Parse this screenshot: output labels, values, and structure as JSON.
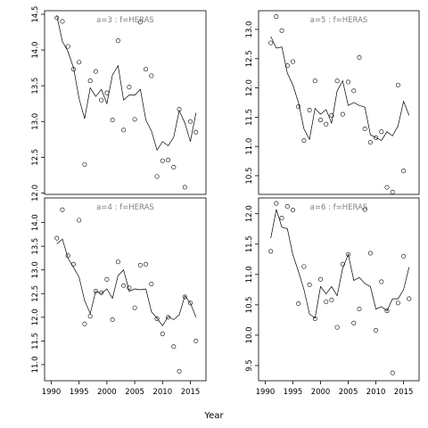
{
  "xlabel": "Year",
  "chart_data": [
    {
      "type": "scatter",
      "title": "a=3  :  f=HERAS",
      "x_ticks": [
        1990,
        1995,
        2000,
        2005,
        2010,
        2015
      ],
      "y_ticks": [
        12.0,
        12.5,
        13.0,
        13.5,
        14.0,
        14.5
      ],
      "xlim": [
        1988.8,
        2017.8
      ],
      "ylim": [
        11.98,
        14.55
      ],
      "points": [
        [
          1991,
          14.45
        ],
        [
          1992,
          14.4
        ],
        [
          1993,
          14.05
        ],
        [
          1994,
          13.73
        ],
        [
          1995,
          13.83
        ],
        [
          1996,
          12.4
        ],
        [
          1997,
          13.57
        ],
        [
          1998,
          13.7
        ],
        [
          1999,
          13.3
        ],
        [
          2000,
          13.4
        ],
        [
          2001,
          13.02
        ],
        [
          2002,
          14.13
        ],
        [
          2003,
          12.88
        ],
        [
          2004,
          13.48
        ],
        [
          2005,
          13.03
        ],
        [
          2006,
          14.39
        ],
        [
          2007,
          13.73
        ],
        [
          2008,
          13.64
        ],
        [
          2009,
          12.23
        ],
        [
          2010,
          12.45
        ],
        [
          2011,
          12.46
        ],
        [
          2012,
          12.36
        ],
        [
          2013,
          13.17
        ],
        [
          2014,
          12.08
        ],
        [
          2015,
          13.0
        ],
        [
          2016,
          12.85
        ]
      ],
      "line": [
        [
          1991,
          14.48
        ],
        [
          1992,
          14.12
        ],
        [
          1993,
          13.98
        ],
        [
          1994,
          13.75
        ],
        [
          1995,
          13.32
        ],
        [
          1996,
          13.04
        ],
        [
          1997,
          13.47
        ],
        [
          1998,
          13.35
        ],
        [
          1999,
          13.45
        ],
        [
          2000,
          13.25
        ],
        [
          2001,
          13.65
        ],
        [
          2002,
          13.78
        ],
        [
          2003,
          13.3
        ],
        [
          2004,
          13.37
        ],
        [
          2005,
          13.37
        ],
        [
          2006,
          13.45
        ],
        [
          2007,
          13.02
        ],
        [
          2008,
          12.87
        ],
        [
          2009,
          12.6
        ],
        [
          2010,
          12.72
        ],
        [
          2011,
          12.66
        ],
        [
          2012,
          12.78
        ],
        [
          2013,
          13.15
        ],
        [
          2014,
          12.98
        ],
        [
          2015,
          12.72
        ],
        [
          2016,
          13.12
        ]
      ]
    },
    {
      "type": "scatter",
      "title": "a=5  :  f=HERAS",
      "x_ticks": [
        1990,
        1995,
        2000,
        2005,
        2010,
        2015
      ],
      "y_ticks": [
        10.5,
        11.0,
        11.5,
        12.0,
        12.5,
        13.0
      ],
      "xlim": [
        1988.8,
        2017.8
      ],
      "ylim": [
        10.18,
        13.32
      ],
      "points": [
        [
          1991,
          12.77
        ],
        [
          1992,
          13.22
        ],
        [
          1993,
          12.98
        ],
        [
          1994,
          12.38
        ],
        [
          1995,
          12.45
        ],
        [
          1996,
          11.68
        ],
        [
          1997,
          11.1
        ],
        [
          1998,
          11.62
        ],
        [
          1999,
          12.12
        ],
        [
          2000,
          11.45
        ],
        [
          2001,
          11.38
        ],
        [
          2002,
          11.53
        ],
        [
          2003,
          12.12
        ],
        [
          2004,
          11.55
        ],
        [
          2005,
          12.1
        ],
        [
          2006,
          11.95
        ],
        [
          2007,
          12.52
        ],
        [
          2008,
          11.3
        ],
        [
          2009,
          11.07
        ],
        [
          2010,
          11.15
        ],
        [
          2011,
          11.25
        ],
        [
          2012,
          10.3
        ],
        [
          2013,
          10.22
        ],
        [
          2014,
          12.05
        ],
        [
          2015,
          10.58
        ]
      ],
      "line": [
        [
          1991,
          12.88
        ],
        [
          1992,
          12.68
        ],
        [
          1993,
          12.7
        ],
        [
          1994,
          12.25
        ],
        [
          1995,
          12.05
        ],
        [
          1996,
          11.75
        ],
        [
          1997,
          11.3
        ],
        [
          1998,
          11.12
        ],
        [
          1999,
          11.65
        ],
        [
          2000,
          11.55
        ],
        [
          2001,
          11.63
        ],
        [
          2002,
          11.4
        ],
        [
          2003,
          11.95
        ],
        [
          2004,
          12.12
        ],
        [
          2005,
          11.7
        ],
        [
          2006,
          11.75
        ],
        [
          2007,
          11.7
        ],
        [
          2008,
          11.67
        ],
        [
          2009,
          11.2
        ],
        [
          2010,
          11.15
        ],
        [
          2011,
          11.1
        ],
        [
          2012,
          11.25
        ],
        [
          2013,
          11.18
        ],
        [
          2014,
          11.35
        ],
        [
          2015,
          11.77
        ],
        [
          2016,
          11.53
        ]
      ]
    },
    {
      "type": "scatter",
      "title": "a=4  :  f=HERAS",
      "x_ticks": [
        1990,
        1995,
        2000,
        2005,
        2010,
        2015
      ],
      "y_ticks": [
        11.0,
        11.5,
        12.0,
        12.5,
        13.0,
        13.5,
        14.0
      ],
      "xlim": [
        1988.8,
        2017.8
      ],
      "ylim": [
        10.66,
        14.52
      ],
      "points": [
        [
          1991,
          13.67
        ],
        [
          1992,
          14.27
        ],
        [
          1993,
          13.3
        ],
        [
          1994,
          13.12
        ],
        [
          1995,
          14.05
        ],
        [
          1996,
          11.86
        ],
        [
          1997,
          12.02
        ],
        [
          1998,
          12.55
        ],
        [
          1999,
          12.52
        ],
        [
          2000,
          12.8
        ],
        [
          2001,
          11.95
        ],
        [
          2002,
          13.17
        ],
        [
          2003,
          12.67
        ],
        [
          2004,
          12.62
        ],
        [
          2005,
          12.2
        ],
        [
          2006,
          13.1
        ],
        [
          2007,
          13.12
        ],
        [
          2008,
          12.7
        ],
        [
          2009,
          11.97
        ],
        [
          2010,
          11.65
        ],
        [
          2011,
          12.0
        ],
        [
          2012,
          11.38
        ],
        [
          2013,
          10.86
        ],
        [
          2014,
          12.43
        ],
        [
          2015,
          12.3
        ],
        [
          2016,
          11.5
        ]
      ],
      "line": [
        [
          1991,
          13.55
        ],
        [
          1992,
          13.65
        ],
        [
          1993,
          13.25
        ],
        [
          1994,
          13.05
        ],
        [
          1995,
          12.85
        ],
        [
          1996,
          12.35
        ],
        [
          1997,
          12.08
        ],
        [
          1998,
          12.55
        ],
        [
          1999,
          12.5
        ],
        [
          2000,
          12.6
        ],
        [
          2001,
          12.4
        ],
        [
          2002,
          12.88
        ],
        [
          2003,
          13.0
        ],
        [
          2004,
          12.55
        ],
        [
          2005,
          12.6
        ],
        [
          2006,
          12.58
        ],
        [
          2007,
          12.6
        ],
        [
          2008,
          12.12
        ],
        [
          2009,
          11.98
        ],
        [
          2010,
          11.82
        ],
        [
          2011,
          12.02
        ],
        [
          2012,
          11.95
        ],
        [
          2013,
          12.05
        ],
        [
          2014,
          12.45
        ],
        [
          2015,
          12.3
        ],
        [
          2016,
          12.0
        ]
      ]
    },
    {
      "type": "scatter",
      "title": "a=6  :  f=HERAS",
      "x_ticks": [
        1990,
        1995,
        2000,
        2005,
        2010,
        2015
      ],
      "y_ticks": [
        9.5,
        10.0,
        10.5,
        11.0,
        11.5,
        12.0
      ],
      "xlim": [
        1988.8,
        2017.8
      ],
      "ylim": [
        9.25,
        12.26
      ],
      "points": [
        [
          1991,
          11.38
        ],
        [
          1992,
          12.17
        ],
        [
          1993,
          11.93
        ],
        [
          1994,
          12.12
        ],
        [
          1995,
          12.06
        ],
        [
          1996,
          10.52
        ],
        [
          1997,
          11.13
        ],
        [
          1998,
          10.83
        ],
        [
          1999,
          10.27
        ],
        [
          2000,
          10.92
        ],
        [
          2001,
          10.55
        ],
        [
          2002,
          10.58
        ],
        [
          2003,
          10.13
        ],
        [
          2004,
          11.17
        ],
        [
          2005,
          11.33
        ],
        [
          2006,
          10.2
        ],
        [
          2007,
          10.43
        ],
        [
          2008,
          12.07
        ],
        [
          2009,
          11.35
        ],
        [
          2010,
          10.08
        ],
        [
          2011,
          10.88
        ],
        [
          2012,
          10.4
        ],
        [
          2013,
          9.38
        ],
        [
          2014,
          10.53
        ],
        [
          2015,
          11.3
        ],
        [
          2016,
          10.6
        ]
      ],
      "line": [
        [
          1991,
          11.6
        ],
        [
          1992,
          12.07
        ],
        [
          1993,
          11.78
        ],
        [
          1994,
          11.75
        ],
        [
          1995,
          11.32
        ],
        [
          1996,
          11.05
        ],
        [
          1997,
          10.75
        ],
        [
          1998,
          10.35
        ],
        [
          1999,
          10.28
        ],
        [
          2000,
          10.8
        ],
        [
          2001,
          10.68
        ],
        [
          2002,
          10.8
        ],
        [
          2003,
          10.65
        ],
        [
          2004,
          11.1
        ],
        [
          2005,
          11.33
        ],
        [
          2006,
          10.9
        ],
        [
          2007,
          10.95
        ],
        [
          2008,
          10.85
        ],
        [
          2009,
          10.8
        ],
        [
          2010,
          10.43
        ],
        [
          2011,
          10.47
        ],
        [
          2012,
          10.4
        ],
        [
          2013,
          10.6
        ],
        [
          2014,
          10.6
        ],
        [
          2015,
          10.75
        ],
        [
          2016,
          11.12
        ]
      ]
    }
  ]
}
